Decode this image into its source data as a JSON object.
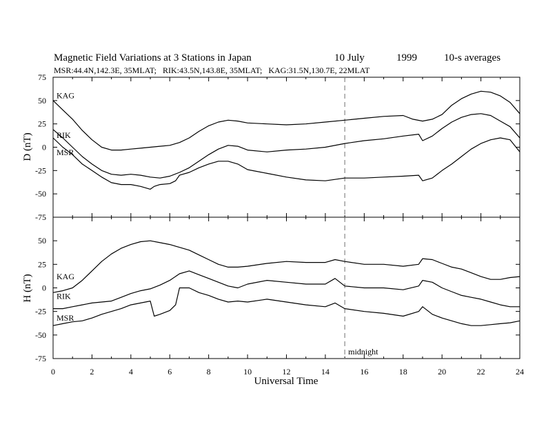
{
  "header": {
    "title": "Magnetic Field Variations at 3 Stations in Japan",
    "date": "10 July",
    "year": "1999",
    "resolution": "10-s averages",
    "stations": "MSR:44.4N,142.3E, 35MLAT;   RIK:43.5N,143.8E, 35MLAT;   KAG:31.5N,130.7E, 22MLAT"
  },
  "chart_data": [
    {
      "type": "line",
      "panel": "D",
      "ylabel": "D (nT)",
      "ylim": [
        -75,
        75
      ],
      "yticks": [
        75,
        50,
        25,
        0,
        -25,
        -50,
        -75
      ],
      "xlim": [
        0,
        24
      ],
      "grid": false,
      "annotations": [
        {
          "text": "",
          "x": 15,
          "style": "dashed-vertical"
        }
      ],
      "series": [
        {
          "name": "KAG",
          "x": [
            0,
            0.5,
            1,
            1.5,
            2,
            2.5,
            3,
            3.5,
            4,
            4.5,
            5,
            5.5,
            6,
            6.5,
            7,
            7.5,
            8,
            8.5,
            9,
            9.5,
            10,
            11,
            12,
            13,
            14,
            15,
            16,
            17,
            18,
            18.5,
            19,
            19.5,
            20,
            20.5,
            21,
            21.5,
            22,
            22.5,
            23,
            23.5,
            24
          ],
          "y": [
            50,
            40,
            30,
            18,
            8,
            0,
            -3,
            -3,
            -2,
            -1,
            0,
            1,
            2,
            5,
            10,
            17,
            23,
            27,
            29,
            28,
            26,
            25,
            24,
            25,
            27,
            29,
            31,
            33,
            34,
            30,
            28,
            30,
            35,
            45,
            52,
            57,
            60,
            59,
            55,
            48,
            36
          ]
        },
        {
          "name": "RIK",
          "x": [
            0,
            0.5,
            1,
            1.5,
            2,
            2.5,
            3,
            3.5,
            4,
            4.5,
            5,
            5.5,
            6,
            6.5,
            7,
            7.5,
            8,
            8.5,
            9,
            9.5,
            10,
            11,
            12,
            13,
            14,
            15,
            16,
            17,
            18,
            18.8,
            19,
            19.5,
            20,
            20.5,
            21,
            21.5,
            22,
            22.5,
            23,
            23.5,
            24
          ],
          "y": [
            19,
            10,
            0,
            -10,
            -18,
            -25,
            -29,
            -30,
            -29,
            -30,
            -32,
            -33,
            -31,
            -27,
            -22,
            -15,
            -8,
            -2,
            2,
            1,
            -3,
            -5,
            -3,
            -2,
            0,
            4,
            7,
            9,
            12,
            14,
            7,
            12,
            20,
            27,
            32,
            35,
            36,
            34,
            28,
            22,
            10
          ]
        },
        {
          "name": "MSR",
          "x": [
            0,
            0.5,
            1,
            1.5,
            2,
            2.5,
            3,
            3.5,
            4,
            4.5,
            5,
            5.2,
            5.5,
            6,
            6.3,
            6.5,
            7,
            7.5,
            8,
            8.5,
            9,
            9.5,
            10,
            11,
            12,
            13,
            14,
            15,
            16,
            17,
            18,
            18.8,
            19,
            19.5,
            20,
            20.5,
            21,
            21.5,
            22,
            22.5,
            23,
            23.5,
            24
          ],
          "y": [
            10,
            0,
            -8,
            -18,
            -25,
            -32,
            -38,
            -40,
            -40,
            -42,
            -45,
            -42,
            -40,
            -39,
            -36,
            -30,
            -27,
            -22,
            -18,
            -15,
            -15,
            -18,
            -24,
            -28,
            -32,
            -35,
            -36,
            -33,
            -33,
            -32,
            -31,
            -30,
            -36,
            -33,
            -25,
            -18,
            -10,
            -2,
            4,
            8,
            10,
            8,
            -5
          ]
        }
      ]
    },
    {
      "type": "line",
      "panel": "H",
      "ylabel": "H (nT)",
      "xlabel": "Universal Time",
      "ylim": [
        -75,
        75
      ],
      "yticks": [
        50,
        25,
        0,
        -25,
        -50,
        -75
      ],
      "xlim": [
        0,
        24
      ],
      "xticks": [
        0,
        2,
        4,
        6,
        8,
        10,
        12,
        14,
        16,
        18,
        20,
        22,
        24
      ],
      "grid": false,
      "annotations": [
        {
          "text": "midnight",
          "x": 15,
          "style": "dashed-vertical"
        }
      ],
      "series": [
        {
          "name": "KAG",
          "x": [
            0,
            0.5,
            1,
            1.5,
            2,
            2.5,
            3,
            3.5,
            4,
            4.5,
            5,
            5.5,
            6,
            6.5,
            7,
            7.5,
            8,
            8.5,
            9,
            9.5,
            10,
            11,
            12,
            13,
            14,
            14.5,
            15,
            16,
            17,
            18,
            18.8,
            19,
            19.5,
            20,
            20.5,
            21,
            21.5,
            22,
            22.5,
            23,
            23.5,
            24
          ],
          "y": [
            -5,
            -3,
            0,
            8,
            18,
            28,
            36,
            42,
            46,
            49,
            50,
            48,
            46,
            43,
            40,
            35,
            30,
            25,
            22,
            22,
            23,
            26,
            28,
            27,
            27,
            30,
            28,
            25,
            25,
            23,
            25,
            31,
            30,
            26,
            22,
            20,
            16,
            12,
            9,
            9,
            11,
            12
          ]
        },
        {
          "name": "RIK",
          "x": [
            0,
            0.5,
            1,
            1.5,
            2,
            2.5,
            3,
            3.5,
            4,
            4.5,
            5,
            5.5,
            6,
            6.5,
            7,
            7.5,
            8,
            8.5,
            9,
            9.5,
            10,
            11,
            12,
            13,
            14,
            14.5,
            15,
            16,
            17,
            18,
            18.8,
            19,
            19.5,
            20,
            20.5,
            21,
            21.5,
            22,
            22.5,
            23,
            23.5,
            24
          ],
          "y": [
            -22,
            -22,
            -20,
            -18,
            -16,
            -15,
            -14,
            -10,
            -6,
            -3,
            -1,
            3,
            8,
            15,
            18,
            14,
            10,
            6,
            2,
            0,
            4,
            8,
            6,
            4,
            4,
            10,
            2,
            0,
            0,
            -2,
            2,
            8,
            6,
            0,
            -4,
            -8,
            -10,
            -12,
            -15,
            -18,
            -20,
            -20
          ]
        },
        {
          "name": "MSR",
          "x": [
            0,
            0.5,
            1,
            1.5,
            2,
            2.5,
            3,
            3.5,
            4,
            4.5,
            5,
            5.2,
            5.5,
            6,
            6.3,
            6.5,
            7,
            7.5,
            8,
            8.5,
            9,
            9.5,
            10,
            11,
            12,
            13,
            14,
            14.5,
            15,
            16,
            17,
            18,
            18.8,
            19,
            19.5,
            20,
            20.5,
            21,
            21.5,
            22,
            22.5,
            23,
            23.5,
            24
          ],
          "y": [
            -40,
            -38,
            -36,
            -35,
            -32,
            -28,
            -25,
            -22,
            -18,
            -16,
            -14,
            -30,
            -28,
            -24,
            -18,
            0,
            0,
            -5,
            -8,
            -12,
            -15,
            -14,
            -15,
            -12,
            -15,
            -18,
            -20,
            -16,
            -22,
            -25,
            -27,
            -30,
            -25,
            -20,
            -28,
            -32,
            -35,
            -38,
            -40,
            -40,
            -39,
            -38,
            -37,
            -35
          ]
        }
      ]
    }
  ],
  "xaxis": {
    "label": "Universal Time"
  }
}
